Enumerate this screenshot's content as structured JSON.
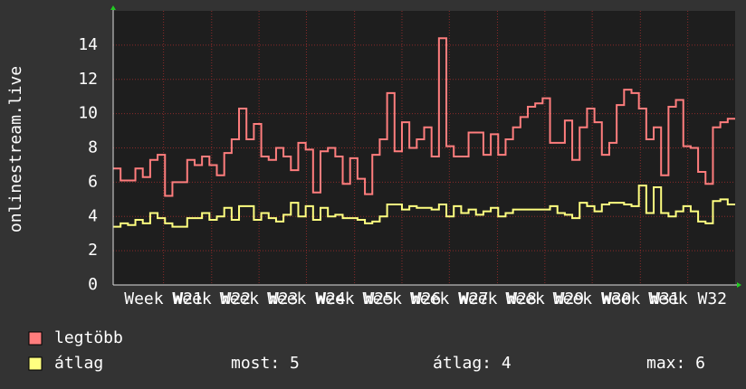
{
  "chart_data": {
    "type": "step",
    "ylabel": "onlinestream.live",
    "xlim": [
      0,
      84
    ],
    "xticks": [
      {
        "value": 6.8,
        "label": "Week W21"
      },
      {
        "value": 13.3,
        "label": "Week W22"
      },
      {
        "value": 19.7,
        "label": "Week W23"
      },
      {
        "value": 26.1,
        "label": "Week W24"
      },
      {
        "value": 32.6,
        "label": "Week W25"
      },
      {
        "value": 39.0,
        "label": "Week W26"
      },
      {
        "value": 45.4,
        "label": "Week W27"
      },
      {
        "value": 51.9,
        "label": "Week W28"
      },
      {
        "value": 58.3,
        "label": "Week W29"
      },
      {
        "value": 64.7,
        "label": "Week W30"
      },
      {
        "value": 71.2,
        "label": "Week W31"
      },
      {
        "value": 77.6,
        "label": "Week W32"
      }
    ],
    "ylim": [
      0,
      16
    ],
    "yticks": [
      0,
      2,
      4,
      6,
      8,
      10,
      12,
      14
    ],
    "grid": true,
    "series": [
      {
        "name": "legtöbb",
        "color": "#ff7d7d",
        "values": [
          6.8,
          6.1,
          6.1,
          6.8,
          6.3,
          7.3,
          7.6,
          5.2,
          6.0,
          6.0,
          7.3,
          7.0,
          7.5,
          7.0,
          6.4,
          7.7,
          8.5,
          10.3,
          8.5,
          9.4,
          7.5,
          7.3,
          8.0,
          7.5,
          6.7,
          8.3,
          7.9,
          5.4,
          7.8,
          8.0,
          7.5,
          5.9,
          7.4,
          6.2,
          5.3,
          7.6,
          8.5,
          11.2,
          7.8,
          9.5,
          8.0,
          8.5,
          9.2,
          7.5,
          14.4,
          8.1,
          7.5,
          7.5,
          8.9,
          8.9,
          7.6,
          8.8,
          7.6,
          8.5,
          9.2,
          9.8,
          10.4,
          10.6,
          10.9,
          8.3,
          8.3,
          9.6,
          7.3,
          9.2,
          10.3,
          9.5,
          7.6,
          8.3,
          10.5,
          11.4,
          11.2,
          10.3,
          8.5,
          9.2,
          6.4,
          10.4,
          10.8,
          8.1,
          8.0,
          6.6,
          5.9,
          9.2,
          9.5,
          9.7
        ]
      },
      {
        "name": "átlag",
        "color": "#ffff80",
        "values": [
          3.4,
          3.6,
          3.5,
          3.8,
          3.6,
          4.2,
          3.9,
          3.6,
          3.4,
          3.4,
          3.9,
          3.9,
          4.2,
          3.8,
          4.0,
          4.5,
          3.8,
          4.6,
          4.6,
          3.8,
          4.2,
          3.9,
          3.7,
          4.1,
          4.8,
          4.0,
          4.6,
          3.8,
          4.5,
          4.0,
          4.1,
          3.9,
          3.9,
          3.8,
          3.6,
          3.7,
          4.0,
          4.7,
          4.7,
          4.4,
          4.6,
          4.5,
          4.5,
          4.4,
          4.7,
          4.0,
          4.6,
          4.2,
          4.4,
          4.1,
          4.3,
          4.5,
          4.0,
          4.2,
          4.4,
          4.4,
          4.4,
          4.4,
          4.4,
          4.6,
          4.2,
          4.1,
          3.9,
          4.8,
          4.6,
          4.3,
          4.7,
          4.8,
          4.8,
          4.7,
          4.6,
          5.8,
          4.2,
          5.7,
          4.2,
          4.0,
          4.3,
          4.6,
          4.3,
          3.7,
          3.6,
          4.9,
          5.0,
          4.7
        ]
      }
    ],
    "stats": [
      "most: 5",
      "átlag: 4",
      "max: 6"
    ]
  }
}
